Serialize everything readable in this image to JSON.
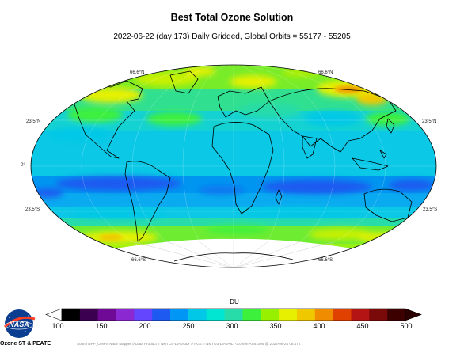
{
  "header": {
    "title": "Best Total Ozone Solution",
    "subtitle": "2022-06-22 (day 173)    Daily Gridded, Global   Orbits = 55177 - 55205"
  },
  "map": {
    "projection": "Hammer",
    "graticule_labels": {
      "n66_left": "66.6°N",
      "n66_right": "66.6°N",
      "n23_left": "23.5°N",
      "n23_right": "23.5°N",
      "equator": "0°",
      "s23_left": "23.5°S",
      "s23_right": "23.5°S",
      "s66_left": "66.6°S",
      "s66_right": "66.6°S"
    },
    "missing_data_region": "south polar night (no data)"
  },
  "colorbar": {
    "unit": "DU",
    "ticks": [
      "100",
      "150",
      "200",
      "250",
      "300",
      "350",
      "400",
      "450",
      "500"
    ],
    "colors": [
      "#000000",
      "#3c0050",
      "#6e0a96",
      "#8c28d2",
      "#6446ff",
      "#1e5af0",
      "#0096f5",
      "#00c8e6",
      "#00e6d2",
      "#28dcaa",
      "#3cf03c",
      "#96f000",
      "#e6f000",
      "#f0c800",
      "#f08c00",
      "#e04000",
      "#b41414",
      "#7a0a0a",
      "#3c0000"
    ]
  },
  "branding": {
    "logo": "NASA",
    "org": "Ozone ST & PEATE"
  },
  "footer": "Suomi NPP_OMPS Nadir Mapper // Data Product = NMTO3-L3-DAILY // PGE = NMTO3-L3-DAILY-2.0.9 in AS61004 @ 2022-06-24 06:47Z"
}
